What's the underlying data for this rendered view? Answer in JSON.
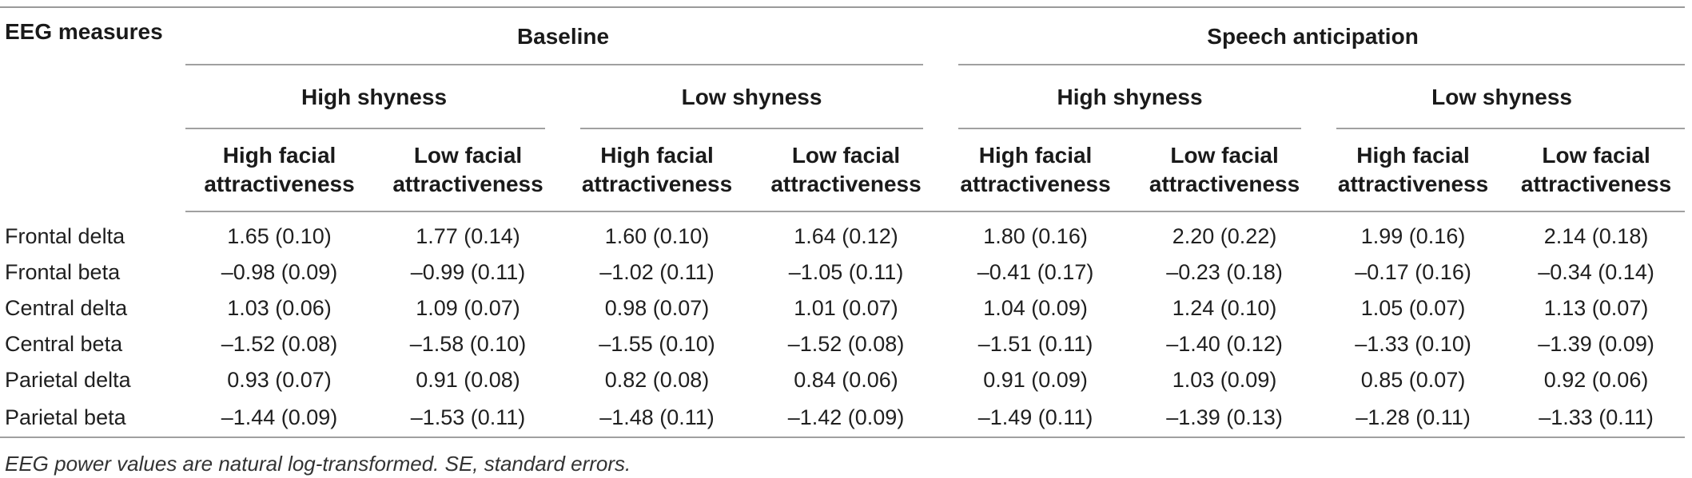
{
  "table": {
    "header": {
      "row_label_heading": "EEG measures",
      "conditions": [
        "Baseline",
        "Speech anticipation"
      ],
      "shyness_groups": [
        "High shyness",
        "Low shyness",
        "High shyness",
        "Low shyness"
      ],
      "attractiveness": [
        [
          "High facial",
          "attractiveness"
        ],
        [
          "Low facial",
          "attractiveness"
        ],
        [
          "High facial",
          "attractiveness"
        ],
        [
          "Low facial",
          "attractiveness"
        ],
        [
          "High facial",
          "attractiveness"
        ],
        [
          "Low facial",
          "attractiveness"
        ],
        [
          "High facial",
          "attractiveness"
        ],
        [
          "Low facial",
          "attractiveness"
        ]
      ]
    },
    "rows": [
      {
        "label": "Frontal delta",
        "values": [
          "1.65 (0.10)",
          "1.77 (0.14)",
          "1.60 (0.10)",
          "1.64 (0.12)",
          "1.80 (0.16)",
          "2.20 (0.22)",
          "1.99 (0.16)",
          "2.14 (0.18)"
        ]
      },
      {
        "label": "Frontal beta",
        "values": [
          "–0.98 (0.09)",
          "–0.99 (0.11)",
          "–1.02 (0.11)",
          "–1.05 (0.11)",
          "–0.41 (0.17)",
          "–0.23 (0.18)",
          "–0.17 (0.16)",
          "–0.34 (0.14)"
        ]
      },
      {
        "label": "Central delta",
        "values": [
          "1.03 (0.06)",
          "1.09 (0.07)",
          "0.98 (0.07)",
          "1.01 (0.07)",
          "1.04 (0.09)",
          "1.24 (0.10)",
          "1.05 (0.07)",
          "1.13 (0.07)"
        ]
      },
      {
        "label": "Central beta",
        "values": [
          "–1.52 (0.08)",
          "–1.58 (0.10)",
          "–1.55 (0.10)",
          "–1.52 (0.08)",
          "–1.51 (0.11)",
          "–1.40 (0.12)",
          "–1.33 (0.10)",
          "–1.39 (0.09)"
        ]
      },
      {
        "label": "Parietal delta",
        "values": [
          "0.93 (0.07)",
          "0.91 (0.08)",
          "0.82 (0.08)",
          "0.84 (0.06)",
          "0.91 (0.09)",
          "1.03 (0.09)",
          "0.85 (0.07)",
          "0.92 (0.06)"
        ]
      },
      {
        "label": "Parietal beta",
        "values": [
          "–1.44 (0.09)",
          "–1.53 (0.11)",
          "–1.48 (0.11)",
          "–1.42 (0.09)",
          "–1.49 (0.11)",
          "–1.39 (0.13)",
          "–1.28 (0.11)",
          "–1.33 (0.11)"
        ]
      }
    ],
    "footnote": "EEG power values are natural log-transformed. SE, standard errors."
  }
}
